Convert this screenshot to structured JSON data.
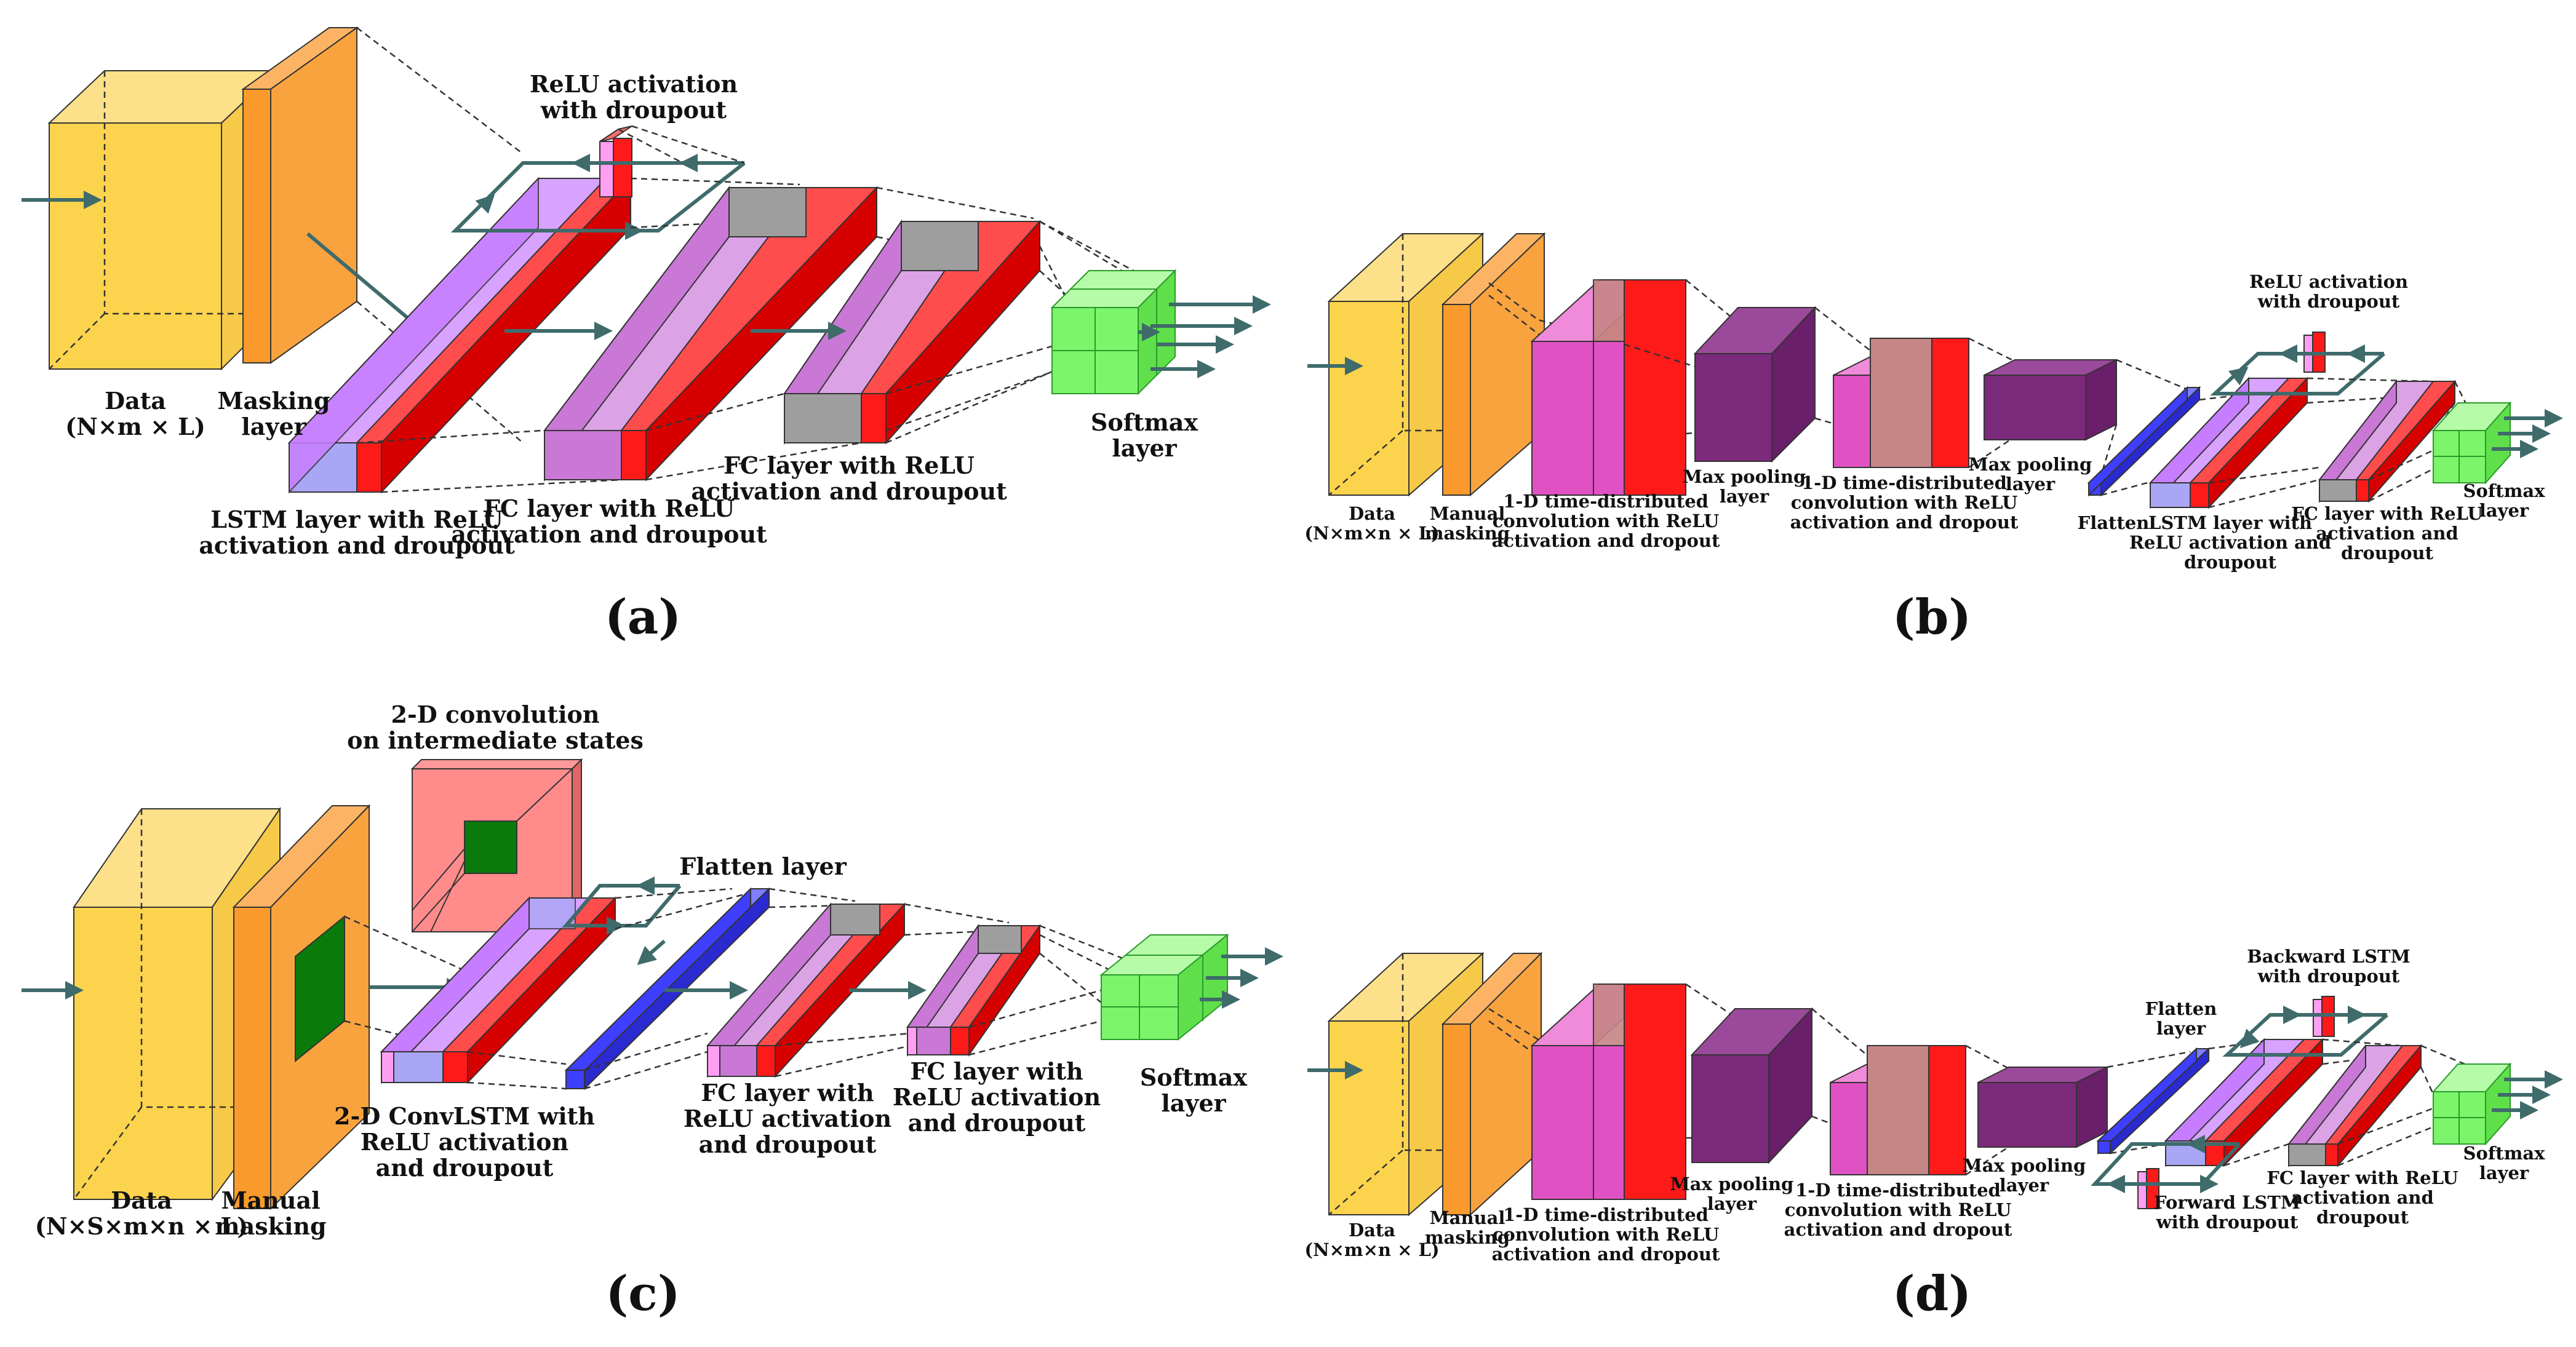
{
  "panels": {
    "a": {
      "caption": "(a)",
      "labels": {
        "data": [
          "Data",
          "(N×m × L)"
        ],
        "masking": [
          "Masking",
          "layer"
        ],
        "lstm": [
          "LSTM layer with ReLU",
          "activation and droupout"
        ],
        "relu": [
          "ReLU activation",
          "with droupout"
        ],
        "fc1": [
          "FC layer with ReLU",
          "activation and droupout"
        ],
        "fc2": [
          "FC layer with ReLU",
          "activation and droupout"
        ],
        "softmax": [
          "Softmax",
          "layer"
        ]
      }
    },
    "b": {
      "caption": "(b)",
      "labels": {
        "data": [
          "Data",
          "(N×m×n × L)"
        ],
        "masking": [
          "Manual",
          "masking"
        ],
        "conv1": [
          "1-D time-distributed",
          "convolution with ReLU",
          "activation and dropout"
        ],
        "pool1": [
          "Max pooling",
          "layer"
        ],
        "conv2": [
          "1-D time-distributed",
          "convolution with ReLU",
          "activation and dropout"
        ],
        "pool2": [
          "Max pooling",
          "layer"
        ],
        "flatten": [
          "Flatten"
        ],
        "lstm": [
          "LSTM layer with",
          "ReLU activation and",
          "droupout"
        ],
        "relu": [
          "ReLU activation",
          "with droupout"
        ],
        "fc": [
          "FC layer with ReLU",
          "activation and",
          "droupout"
        ],
        "softmax": [
          "Softmax",
          "layer"
        ]
      }
    },
    "c": {
      "caption": "(c)",
      "labels": {
        "data": [
          "Data",
          "(N×S×m×n × L)"
        ],
        "masking": [
          "Manual",
          "masking"
        ],
        "conv2d": [
          "2-D convolution",
          "on intermediate states"
        ],
        "convlstm": [
          "2-D ConvLSTM with",
          "ReLU activation",
          "and droupout"
        ],
        "flatten": [
          "Flatten layer"
        ],
        "fc1": [
          "FC layer with",
          "ReLU activation",
          "and droupout"
        ],
        "fc2": [
          "FC layer with",
          "ReLU activation",
          "and droupout"
        ],
        "softmax": [
          "Softmax",
          "layer"
        ]
      }
    },
    "d": {
      "caption": "(d)",
      "labels": {
        "data": [
          "Data",
          "(N×m×n × L)"
        ],
        "masking": [
          "Manual",
          "masking"
        ],
        "conv1": [
          "1-D time-distributed",
          "convolution with ReLU",
          "activation and dropout"
        ],
        "pool1": [
          "Max pooling",
          "layer"
        ],
        "conv2": [
          "1-D time-distributed",
          "convolution with ReLU",
          "activation and dropout"
        ],
        "pool2": [
          "Max pooling",
          "layer"
        ],
        "flatten": [
          "Flatten",
          "layer"
        ],
        "backward": [
          "Backward LSTM",
          "with droupout"
        ],
        "forward": [
          "Forward LSTM",
          "with droupout"
        ],
        "fc": [
          "FC layer with ReLU",
          "activation and",
          "droupout"
        ],
        "softmax": [
          "Softmax",
          "layer"
        ]
      }
    }
  },
  "colors": {
    "data": "#fcd34d",
    "mask": "#fb9a2c",
    "lstm": "#c77dff",
    "lstm_front": "#a9a6f5",
    "fc": "#c978d6",
    "fc_gray": "#9e9e9e",
    "red": "#ff1a1a",
    "pink": "#ff9ff3",
    "softmax": "#7cf56a",
    "conv": "#e052c4",
    "pool": "#7b2a7b",
    "flatten": "#3f3fff",
    "green_dark": "#0a7a0a",
    "arrow": "#3f6b6b"
  }
}
